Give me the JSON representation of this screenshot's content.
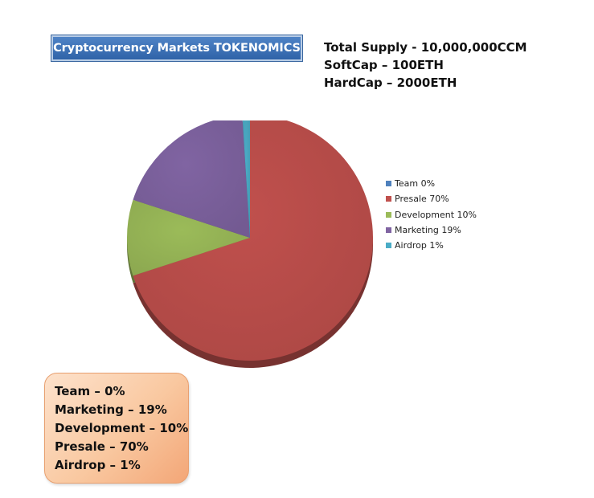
{
  "title": "Cryptocurrency Markets TOKENOMICS",
  "supply_info": [
    "Total Supply - 10,000,000CCM",
    "SoftCap – 100ETH",
    "HardCap – 2000ETH"
  ],
  "chart_data": {
    "type": "pie",
    "slices": [
      {
        "label": "Team",
        "value": 0,
        "legend": "Team 0%",
        "color": "#4f81bd"
      },
      {
        "label": "Presale",
        "value": 70,
        "legend": "Presale 70%",
        "color": "#c0504d"
      },
      {
        "label": "Development",
        "value": 10,
        "legend": "Development 10%",
        "color": "#9bbb59"
      },
      {
        "label": "Marketing",
        "value": 19,
        "legend": "Marketing 19%",
        "color": "#8064a2"
      },
      {
        "label": "Airdrop",
        "value": 1,
        "legend": "Airdrop 1%",
        "color": "#4bacc6"
      }
    ],
    "legend_position": "right"
  },
  "summary": [
    "Team – 0%",
    "Marketing – 19%",
    "Development – 10%",
    "Presale – 70%",
    "Airdrop – 1%"
  ]
}
